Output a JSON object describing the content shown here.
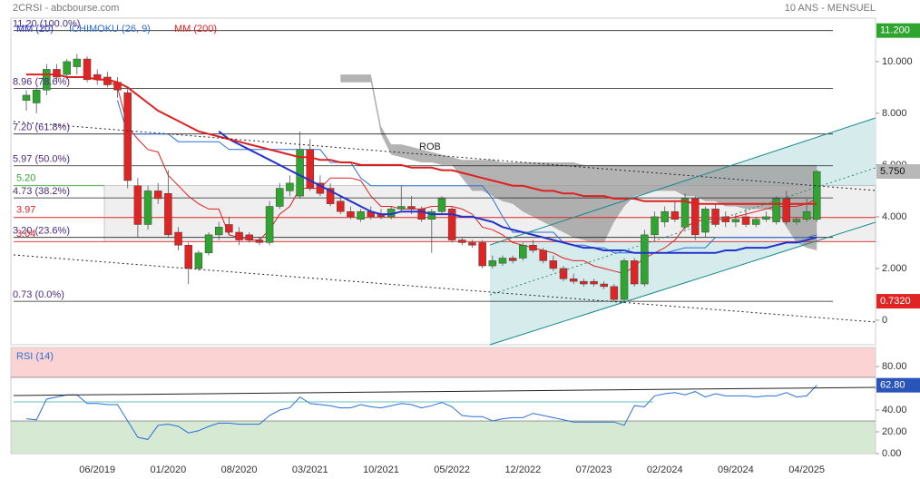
{
  "chart_data": [
    {
      "type": "candlestick",
      "title": "2CRSI - abcbourse.com",
      "subtitle": "10 ANS - MENSUEL",
      "annotation": "ROB",
      "categories": [
        null,
        null,
        null,
        null,
        null,
        null,
        null,
        "06/2019",
        null,
        null,
        null,
        null,
        null,
        null,
        "01/2020",
        null,
        null,
        null,
        null,
        null,
        null,
        "08/2020",
        null,
        null,
        null,
        null,
        null,
        null,
        "03/2021",
        null,
        null,
        null,
        null,
        null,
        null,
        "10/2021",
        null,
        null,
        null,
        null,
        null,
        null,
        "05/2022",
        null,
        null,
        null,
        null,
        null,
        null,
        "12/2022",
        null,
        null,
        null,
        null,
        null,
        null,
        "07/2023",
        null,
        null,
        null,
        null,
        null,
        null,
        "02/2024",
        null,
        null,
        null,
        null,
        null,
        null,
        "09/2024",
        null,
        null,
        null,
        null,
        null,
        null,
        "04/2025",
        null
      ],
      "open": [
        8.5,
        8.4,
        8.9,
        9.7,
        9.5,
        9.8,
        10.1,
        9.5,
        9.4,
        9.2,
        8.8,
        5.2,
        3.7,
        5.0,
        4.9,
        3.4,
        2.9,
        2.0,
        2.6,
        3.3,
        3.7,
        3.4,
        3.3,
        3.1,
        3.0,
        4.4,
        5.0,
        4.8,
        6.6,
        5.3,
        5.1,
        4.6,
        4.2,
        3.9,
        4.2,
        4.1,
        4.0,
        4.3,
        4.4,
        4.3,
        3.9,
        4.2,
        4.3,
        3.1,
        3.0,
        3.0,
        2.1,
        2.2,
        2.4,
        2.4,
        2.9,
        2.7,
        2.3,
        2.0,
        1.6,
        1.5,
        1.5,
        1.4,
        1.3,
        0.8,
        2.3,
        1.4,
        3.3,
        3.8,
        4.2,
        3.6,
        4.7,
        3.4,
        4.3,
        4.0,
        3.8,
        4.0,
        3.7,
        3.9,
        3.8,
        4.7,
        3.8,
        3.9,
        3.9
      ],
      "high": [
        8.9,
        9.0,
        9.9,
        9.9,
        10.1,
        10.3,
        10.2,
        9.7,
        9.6,
        9.4,
        9.0,
        5.5,
        5.2,
        5.3,
        5.8,
        3.6,
        3.0,
        2.7,
        3.4,
        3.8,
        4.0,
        3.6,
        3.4,
        3.2,
        4.6,
        5.3,
        5.6,
        7.3,
        7.0,
        5.6,
        5.3,
        4.8,
        4.4,
        4.3,
        4.4,
        4.3,
        4.4,
        5.2,
        4.8,
        4.4,
        4.3,
        4.8,
        4.4,
        3.2,
        3.1,
        3.1,
        2.5,
        2.5,
        2.5,
        3.0,
        3.1,
        2.8,
        2.5,
        2.1,
        1.8,
        1.6,
        1.6,
        1.5,
        1.4,
        2.4,
        2.4,
        3.5,
        4.2,
        4.4,
        4.6,
        4.9,
        4.8,
        4.4,
        4.5,
        4.2,
        4.1,
        4.3,
        4.0,
        4.2,
        4.8,
        5.0,
        4.0,
        4.7,
        5.8
      ],
      "low": [
        8.1,
        8.0,
        8.7,
        9.2,
        9.3,
        9.5,
        9.2,
        9.1,
        9.0,
        8.6,
        5.1,
        3.2,
        3.5,
        4.5,
        3.2,
        2.7,
        1.4,
        1.9,
        2.5,
        3.1,
        3.3,
        2.9,
        3.0,
        2.9,
        2.9,
        4.3,
        4.8,
        4.7,
        5.0,
        4.8,
        4.4,
        4.1,
        3.9,
        3.8,
        3.9,
        3.9,
        3.9,
        4.2,
        4.1,
        3.8,
        2.6,
        4.1,
        3.0,
        2.9,
        2.8,
        2.0,
        2.0,
        2.1,
        2.2,
        2.3,
        2.6,
        2.2,
        1.9,
        1.5,
        1.4,
        1.3,
        1.3,
        1.2,
        0.73,
        0.73,
        1.3,
        1.3,
        3.1,
        3.6,
        3.8,
        3.5,
        3.1,
        3.2,
        3.6,
        3.6,
        3.6,
        3.6,
        3.6,
        3.8,
        3.7,
        3.7,
        3.7,
        3.8,
        3.8
      ],
      "close": [
        8.7,
        8.9,
        9.7,
        9.4,
        10.0,
        10.1,
        9.3,
        9.3,
        9.1,
        8.9,
        5.4,
        3.7,
        5.0,
        4.7,
        3.3,
        2.9,
        2.0,
        2.6,
        3.3,
        3.6,
        3.4,
        3.1,
        3.1,
        3.0,
        4.4,
        5.1,
        5.3,
        6.6,
        5.1,
        4.9,
        4.5,
        4.2,
        4.0,
        4.2,
        4.0,
        4.0,
        4.3,
        4.4,
        4.3,
        3.9,
        4.2,
        4.7,
        3.1,
        3.0,
        2.9,
        2.1,
        2.3,
        2.4,
        2.3,
        2.9,
        2.7,
        2.3,
        2.0,
        1.6,
        1.5,
        1.4,
        1.4,
        1.3,
        0.8,
        2.3,
        1.4,
        3.3,
        4.0,
        4.2,
        3.9,
        4.7,
        3.3,
        4.3,
        3.7,
        3.8,
        3.9,
        3.7,
        3.9,
        4.0,
        4.7,
        3.8,
        3.9,
        4.2,
        5.75
      ],
      "up_color": "#2fa52f",
      "down_color": "#e02424",
      "series": [
        {
          "name": "MM (20)",
          "color": "#2233cc",
          "values": [
            null,
            null,
            null,
            null,
            null,
            null,
            null,
            null,
            null,
            null,
            null,
            null,
            null,
            null,
            null,
            null,
            null,
            null,
            null,
            7.3,
            7.0,
            6.8,
            6.6,
            6.4,
            6.2,
            6.0,
            5.8,
            5.6,
            5.4,
            5.2,
            5.0,
            4.8,
            4.6,
            4.4,
            4.2,
            4.1,
            4.1,
            4.2,
            4.2,
            4.2,
            4.1,
            4.1,
            4.1,
            4.0,
            4.0,
            3.9,
            3.8,
            3.6,
            3.5,
            3.4,
            3.3,
            3.2,
            3.1,
            3.0,
            2.9,
            2.8,
            2.8,
            2.7,
            2.7,
            2.7,
            2.6,
            2.6,
            2.6,
            2.6,
            2.6,
            2.6,
            2.6,
            2.6,
            2.6,
            2.7,
            2.7,
            2.8,
            2.8,
            2.8,
            2.9,
            3.0,
            3.0,
            3.1,
            3.2
          ]
        },
        {
          "name": "MM (200)",
          "color": "#dd2020",
          "values": [
            9.5,
            9.5,
            9.5,
            9.5,
            9.4,
            9.4,
            9.4,
            9.3,
            9.3,
            9.2,
            9.0,
            8.7,
            8.4,
            8.1,
            7.9,
            7.7,
            7.5,
            7.3,
            7.2,
            7.1,
            7.0,
            6.9,
            6.8,
            6.7,
            6.6,
            6.5,
            6.4,
            6.3,
            6.3,
            6.2,
            6.2,
            6.1,
            6.1,
            6.0,
            6.0,
            6.0,
            6.0,
            6.0,
            5.9,
            5.9,
            5.9,
            5.8,
            5.8,
            5.7,
            5.6,
            5.5,
            5.4,
            5.3,
            5.2,
            5.2,
            5.1,
            5.0,
            5.0,
            4.9,
            4.9,
            4.8,
            4.8,
            4.8,
            4.7,
            4.7,
            4.7,
            4.6,
            4.6,
            4.6,
            4.6,
            4.6,
            4.5,
            4.5,
            4.5,
            4.5,
            4.5,
            4.5,
            4.5,
            4.5,
            4.5,
            4.5,
            4.5,
            4.5,
            4.5
          ]
        }
      ],
      "ichimoku": {
        "name": "ICHIMOKU (26, 9)",
        "color": "#2a6fd6",
        "tenkan_color": "#dd2020",
        "cloud_color": "#9a9a9a",
        "tenkan": [
          null,
          null,
          null,
          null,
          null,
          null,
          null,
          null,
          9.3,
          9.0,
          7.5,
          7.0,
          6.6,
          6.5,
          5.6,
          5.2,
          4.8,
          4.5,
          4.3,
          4.3,
          3.3,
          3.2,
          3.1,
          3.1,
          3.5,
          4.1,
          4.4,
          5.1,
          5.1,
          5.1,
          5.5,
          5.5,
          5.5,
          5.4,
          4.8,
          4.4,
          4.4,
          4.3,
          4.3,
          4.3,
          4.4,
          4.4,
          4.4,
          4.3,
          4.1,
          3.6,
          3.5,
          3.3,
          3.0,
          2.9,
          2.8,
          2.7,
          2.6,
          2.4,
          2.3,
          2.3,
          2.1,
          2.0,
          1.9,
          1.8,
          2.1,
          2.4,
          2.6,
          2.8,
          3.1,
          3.6,
          3.8,
          3.9,
          3.9,
          3.9,
          4.0,
          4.1,
          4.2,
          4.3,
          4.4,
          4.4,
          4.4,
          4.5,
          4.7
        ],
        "kijun": [
          null,
          null,
          null,
          null,
          null,
          null,
          null,
          null,
          null,
          8.5,
          7.2,
          7.2,
          7.2,
          7.2,
          7.2,
          6.9,
          6.9,
          6.9,
          6.9,
          6.9,
          6.6,
          6.6,
          6.6,
          6.6,
          6.6,
          6.6,
          6.6,
          6.6,
          6.6,
          6.6,
          6.1,
          6.1,
          6.1,
          5.5,
          5.2,
          5.2,
          5.2,
          5.2,
          5.2,
          5.2,
          5.2,
          5.2,
          5.2,
          5.2,
          5.2,
          5.2,
          4.7,
          4.0,
          3.4,
          3.4,
          3.4,
          3.4,
          3.4,
          3.0,
          2.9,
          2.9,
          2.8,
          2.8,
          2.6,
          2.6,
          2.6,
          2.6,
          2.6,
          2.6,
          2.7,
          2.8,
          2.8,
          2.8,
          3.2,
          3.2,
          3.2,
          3.2,
          3.2,
          3.2,
          3.2,
          3.2,
          3.2,
          3.2,
          3.3
        ],
        "span_a": [
          null,
          null,
          null,
          null,
          null,
          null,
          null,
          null,
          null,
          null,
          null,
          null,
          null,
          null,
          null,
          null,
          null,
          null,
          null,
          null,
          null,
          null,
          null,
          null,
          null,
          null,
          null,
          null,
          null,
          null,
          null,
          9.5,
          9.5,
          9.5,
          9.5,
          7.5,
          6.8,
          6.8,
          6.7,
          6.6,
          6.5,
          6.4,
          6.3,
          6.2,
          6.2,
          6.2,
          6.2,
          6.1,
          6.1,
          6.1,
          6.1,
          6.1,
          6.1,
          6.1,
          6.1,
          6.0,
          6.0,
          6.0,
          6.0,
          6.0,
          6.0,
          6.0,
          6.0,
          6.0,
          6.0,
          6.0,
          6.0,
          6.0,
          6.0,
          6.0,
          6.0,
          6.0,
          6.0,
          6.0,
          6.0,
          6.0,
          6.0,
          6.0,
          6.0
        ],
        "span_b": [
          null,
          null,
          null,
          null,
          null,
          null,
          null,
          null,
          null,
          null,
          null,
          null,
          null,
          null,
          null,
          null,
          null,
          null,
          null,
          null,
          null,
          null,
          null,
          null,
          null,
          null,
          null,
          null,
          null,
          null,
          null,
          9.2,
          9.2,
          9.2,
          9.2,
          7.2,
          6.4,
          6.3,
          6.2,
          6.1,
          6.1,
          6.0,
          6.0,
          5.5,
          5.0,
          5.0,
          4.8,
          4.6,
          4.5,
          4.2,
          4.0,
          3.8,
          3.6,
          3.4,
          3.2,
          3.1,
          3.0,
          3.0,
          3.8,
          4.4,
          4.8,
          4.9,
          5.0,
          5.0,
          5.0,
          4.8,
          4.8,
          4.6,
          4.6,
          4.4,
          4.4,
          4.3,
          4.3,
          4.3,
          4.2,
          3.6,
          3.0,
          2.8,
          2.7
        ]
      },
      "levels": [
        {
          "value": 11.2,
          "label": "11.20 (100.0%)"
        },
        {
          "value": 8.96,
          "label": "8.96 (78.6%)"
        },
        {
          "value": 7.2,
          "label": "7.20 (61.8%)"
        },
        {
          "value": 5.97,
          "label": "5.97 (50.0%)"
        },
        {
          "value": 4.73,
          "label": "4.73 (38.2%)"
        },
        {
          "value": 3.2,
          "label": "3.20 (23.6%)"
        },
        {
          "value": 0.73,
          "label": "0.73 (0.0%)"
        }
      ],
      "lines": [
        {
          "value": 5.2,
          "label": "5.20",
          "color": "#2fa52f"
        },
        {
          "value": 3.97,
          "label": "3.97",
          "color": "#e02424"
        },
        {
          "value": 3.04,
          "label": "3.04",
          "color": "#e02424"
        }
      ],
      "markers": [
        {
          "value": 11.2,
          "label": "11.200",
          "color": "#2fa52f"
        },
        {
          "value": 5.75,
          "label": "5.750",
          "color": "#b8b8b8"
        },
        {
          "value": 0.732,
          "label": "0.7320",
          "color": "#e02424"
        }
      ],
      "ylim": [
        -0.95,
        11.68
      ],
      "yticks": [
        0,
        {
          "value": 2,
          "label": "2.000"
        },
        {
          "value": 4,
          "label": "4.000"
        },
        {
          "value": 6,
          "label": "6.000"
        },
        {
          "value": 8,
          "label": "8.000"
        },
        {
          "value": 10,
          "label": "10.000"
        }
      ]
    },
    {
      "type": "line",
      "title": "RSI (14)",
      "color": "#2a6fd6",
      "values": [
        32,
        31,
        50,
        52,
        54,
        54,
        46,
        46,
        45,
        45,
        30,
        15,
        13,
        26,
        27,
        25,
        19,
        21,
        25,
        28,
        28,
        27,
        27,
        27,
        35,
        40,
        42,
        52,
        46,
        45,
        44,
        42,
        42,
        45,
        43,
        42,
        44,
        46,
        45,
        42,
        44,
        47,
        43,
        35,
        34,
        34,
        30,
        32,
        33,
        33,
        37,
        35,
        33,
        31,
        29,
        29,
        29,
        29,
        29,
        26,
        44,
        43,
        53,
        55,
        56,
        54,
        57,
        52,
        55,
        53,
        53,
        53,
        52,
        53,
        53,
        56,
        52,
        53,
        62.8
      ],
      "last": {
        "value": 62.8,
        "label": "62.80",
        "color": "#2a55b8"
      },
      "overbought": 70,
      "oversold": 30,
      "ylim": [
        0,
        97.5
      ],
      "yticks": [
        {
          "value": 0,
          "label": "0.00"
        },
        {
          "value": 20,
          "label": "20.00"
        },
        {
          "value": 40,
          "label": "40.00"
        },
        {
          "value": 60,
          "label": "60.00"
        },
        {
          "value": 80,
          "label": "80.00"
        }
      ]
    }
  ]
}
